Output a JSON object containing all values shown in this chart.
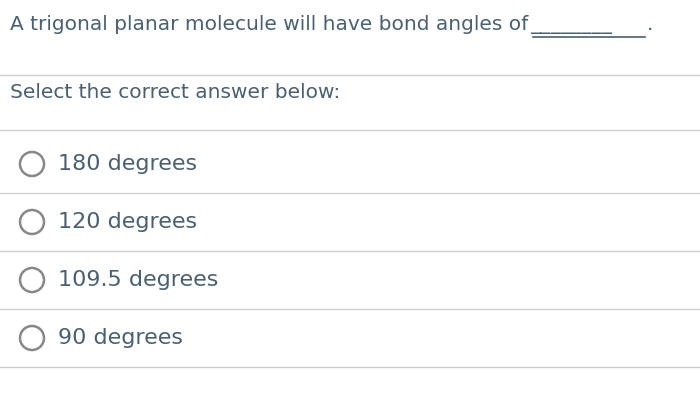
{
  "question_prefix": "A trigonal planar molecule will have bond angles of ",
  "question_blank": "________",
  "question_suffix": ".",
  "subtitle": "Select the correct answer below:",
  "options": [
    "180 degrees",
    "120 degrees",
    "109.5 degrees",
    "90 degrees"
  ],
  "bg_color": "#ffffff",
  "text_color": "#4a6070",
  "line_color": "#cccccc",
  "question_fontsize": 14.5,
  "subtitle_fontsize": 14.5,
  "option_fontsize": 16,
  "circle_color": "#888888",
  "fig_width": 7.0,
  "fig_height": 3.94,
  "dpi": 100
}
